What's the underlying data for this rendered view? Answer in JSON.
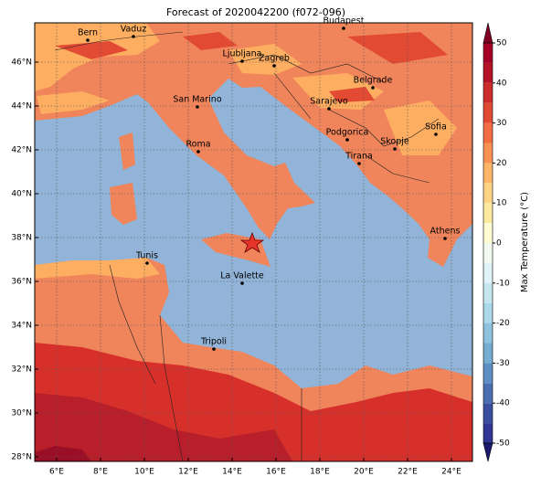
{
  "title": "Forecast of 2020042200 (f072-096)",
  "xticks": [
    {
      "value": 6,
      "label": "6°E"
    },
    {
      "value": 8,
      "label": "8°E"
    },
    {
      "value": 10,
      "label": "10°E"
    },
    {
      "value": 12,
      "label": "12°E"
    },
    {
      "value": 14,
      "label": "14°E"
    },
    {
      "value": 16,
      "label": "16°E"
    },
    {
      "value": 18,
      "label": "18°E"
    },
    {
      "value": 20,
      "label": "20°E"
    },
    {
      "value": 22,
      "label": "22°E"
    },
    {
      "value": 24,
      "label": "24°E"
    }
  ],
  "yticks": [
    {
      "value": 28,
      "label": "28°N"
    },
    {
      "value": 30,
      "label": "30°N"
    },
    {
      "value": 32,
      "label": "32°N"
    },
    {
      "value": 34,
      "label": "34°N"
    },
    {
      "value": 36,
      "label": "36°N"
    },
    {
      "value": 38,
      "label": "38°N"
    },
    {
      "value": 40,
      "label": "40°N"
    },
    {
      "value": 42,
      "label": "42°N"
    },
    {
      "value": 44,
      "label": "44°N"
    },
    {
      "value": 46,
      "label": "46°N"
    }
  ],
  "colorbar": {
    "label": "Max Temperature (°C)",
    "lim": [
      -50,
      50
    ],
    "ticks": [
      -50,
      -40,
      -30,
      -20,
      -10,
      0,
      10,
      20,
      30,
      40,
      50
    ]
  },
  "cities": [
    "Bern",
    "Vaduz",
    "Budapest",
    "Ljubljana",
    "Zagreb",
    "Belgrade",
    "Sarajevo",
    "San Marino",
    "Podgorica",
    "Sofia",
    "Skopje",
    "Roma",
    "Tirana",
    "Athens",
    "Tunis",
    "La Valette",
    "Tripoli"
  ]
}
